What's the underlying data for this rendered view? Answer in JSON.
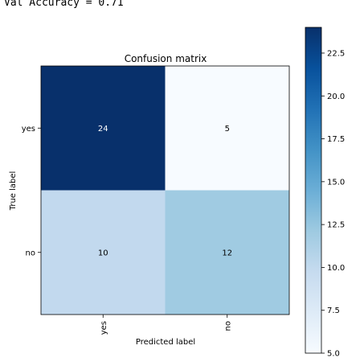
{
  "header": {
    "text": "Val Accuracy = 0.71"
  },
  "chart_data": {
    "type": "heatmap",
    "title": "Confusion matrix",
    "xlabel": "Predicted label",
    "ylabel": "True label",
    "x_categories": [
      "yes",
      "no"
    ],
    "y_categories": [
      "yes",
      "no"
    ],
    "values": [
      [
        24,
        5
      ],
      [
        10,
        12
      ]
    ],
    "colormap": "Blues",
    "colorbar": {
      "min": 5.0,
      "max": 24.0,
      "ticks": [
        "5.0",
        "7.5",
        "10.0",
        "12.5",
        "15.0",
        "17.5",
        "20.0",
        "22.5"
      ]
    }
  }
}
